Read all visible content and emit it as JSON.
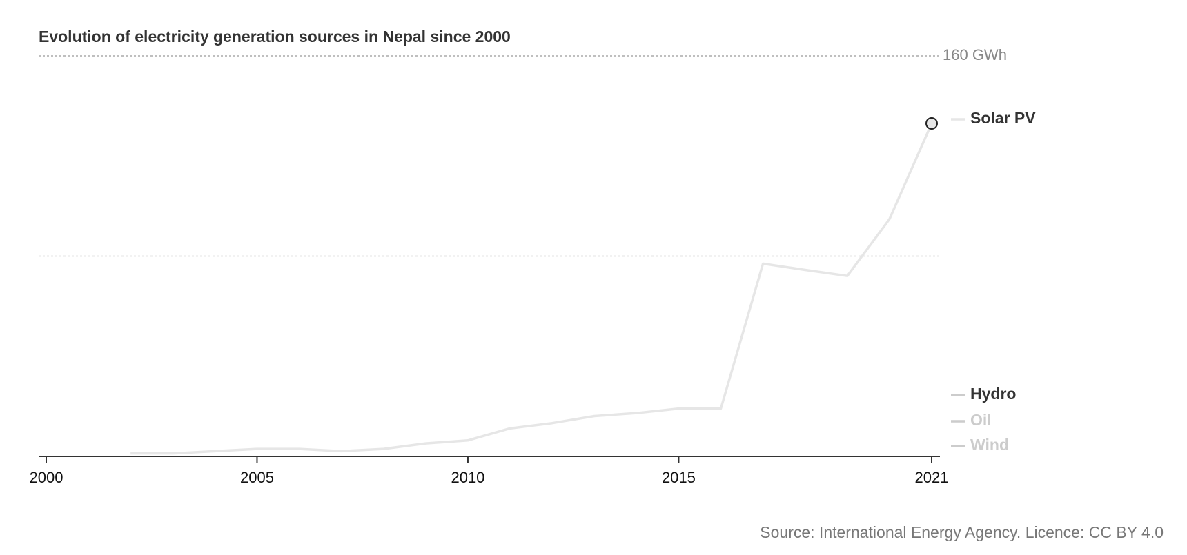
{
  "chart_data": {
    "type": "line",
    "title": "Evolution of electricity generation sources in Nepal since 2000",
    "source": "Source: International Energy Agency. Licence: CC BY 4.0",
    "x": [
      2002,
      2003,
      2004,
      2005,
      2006,
      2007,
      2008,
      2009,
      2010,
      2011,
      2012,
      2013,
      2014,
      2015,
      2016,
      2017,
      2018,
      2019,
      2020,
      2021
    ],
    "series": [
      {
        "name": "Solar PV",
        "color": "#e6e6e6",
        "values": [
          1.2,
          1.2,
          2.1,
          3.0,
          3.0,
          2.1,
          3.0,
          5.2,
          6.4,
          11.2,
          13.3,
          16.1,
          17.3,
          19.1,
          19.1,
          77.0,
          74.5,
          72.1,
          94.8,
          133.0
        ]
      }
    ],
    "legend": [
      {
        "name": "Hydro",
        "color": "#333333"
      },
      {
        "name": "Oil",
        "color": "#cccccc"
      },
      {
        "name": "Wind",
        "color": "#cccccc"
      }
    ],
    "xlim": [
      2000,
      2021
    ],
    "xticks": [
      2000,
      2005,
      2010,
      2015,
      2021
    ],
    "ylim": [
      0,
      160
    ],
    "yticks": [
      80,
      {
        "value": 160,
        "label": "160 GWh"
      }
    ],
    "grid": true
  }
}
